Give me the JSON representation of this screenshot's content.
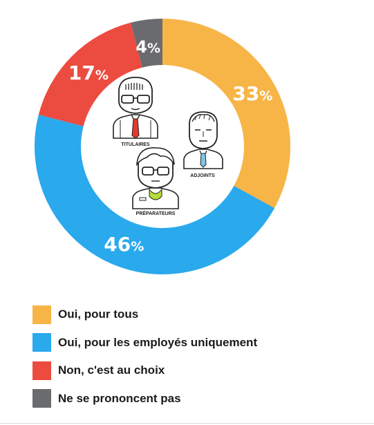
{
  "chart_data": {
    "type": "pie",
    "variant": "donut",
    "values": [
      33,
      46,
      17,
      4
    ],
    "labels": [
      "Oui, pour tous",
      "Oui, pour les employés uniquement",
      "Non, c'est au choix",
      "Ne se prononcent pas"
    ],
    "colors": [
      "#f7b548",
      "#2aa9ec",
      "#ec4c3f",
      "#6a6b6e"
    ],
    "value_labels": [
      "33",
      "46",
      "17",
      "4"
    ],
    "percent_symbol": "%",
    "legend_position": "bottom-left"
  },
  "figures": {
    "titulaires": "TITULAIRES",
    "adjoints": "ADJOINTS",
    "preparateurs": "PRÉPARATEURS"
  }
}
